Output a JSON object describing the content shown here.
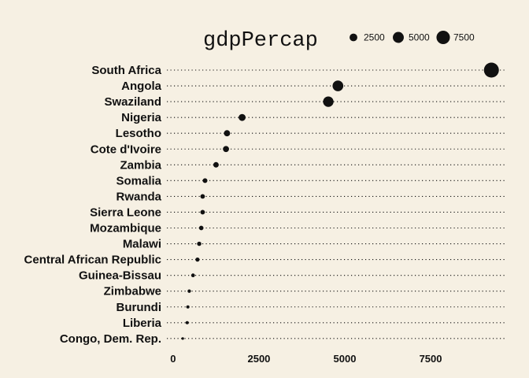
{
  "chart_data": {
    "type": "scatter",
    "title": "",
    "xlabel": "",
    "ylabel": "",
    "categories": [
      "South Africa",
      "Angola",
      "Swaziland",
      "Nigeria",
      "Lesotho",
      "Cote d'Ivoire",
      "Zambia",
      "Somalia",
      "Rwanda",
      "Sierra Leone",
      "Mozambique",
      "Malawi",
      "Central African Republic",
      "Guinea-Bissau",
      "Zimbabwe",
      "Burundi",
      "Liberia",
      "Congo, Dem. Rep."
    ],
    "values": [
      9270,
      4800,
      4520,
      2010,
      1570,
      1540,
      1250,
      930,
      860,
      860,
      820,
      760,
      710,
      580,
      470,
      430,
      410,
      280
    ],
    "x_ticks": [
      0,
      2500,
      5000,
      7500
    ],
    "x_tick_labels": [
      "0",
      "2500",
      "5000",
      "7500"
    ],
    "xlim": [
      -250,
      9700
    ],
    "grid": false,
    "legend": {
      "title": "gdpPercap",
      "position": "top",
      "entries": [
        {
          "label": "2500",
          "value": 2500
        },
        {
          "label": "5000",
          "value": 5000
        },
        {
          "label": "7500",
          "value": 7500
        }
      ]
    },
    "colors": {
      "background": "#f6f0e3",
      "point": "#111111"
    }
  }
}
